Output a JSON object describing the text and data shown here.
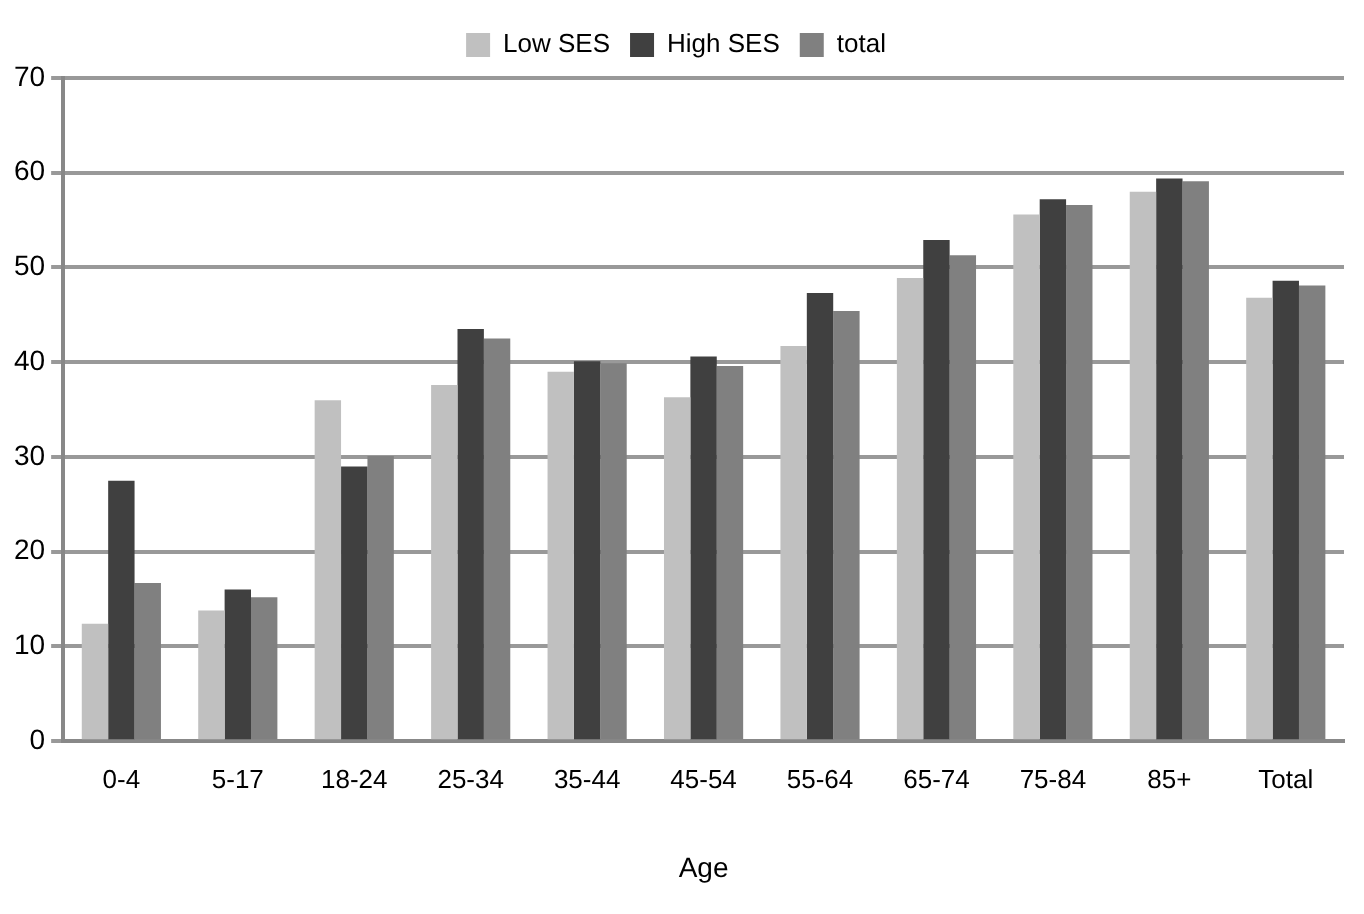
{
  "chart_data": {
    "type": "bar",
    "xlabel": "Age",
    "categories": [
      "0-4",
      "5-17",
      "18-24",
      "25-34",
      "35-44",
      "45-54",
      "55-64",
      "65-74",
      "75-84",
      "85+",
      "Total"
    ],
    "series": [
      {
        "name": "Low SES",
        "color": "#c0c0c0",
        "values": [
          12.4,
          13.8,
          36,
          37.6,
          39,
          36.3,
          41.7,
          48.9,
          55.6,
          58,
          46.8
        ]
      },
      {
        "name": "High SES",
        "color": "#404040",
        "values": [
          27.5,
          16,
          29,
          43.5,
          40.1,
          40.6,
          47.3,
          52.9,
          57.2,
          59.4,
          48.6
        ]
      },
      {
        "name": "total",
        "color": "#808080",
        "values": [
          16.7,
          15.2,
          30.1,
          42.5,
          39.9,
          39.6,
          45.4,
          51.3,
          56.6,
          59.1,
          48.1
        ]
      }
    ],
    "ylim": [
      0,
      70
    ],
    "yticks": [
      0,
      10,
      20,
      30,
      40,
      50,
      60,
      70
    ],
    "grid": "y",
    "legend": "top"
  }
}
